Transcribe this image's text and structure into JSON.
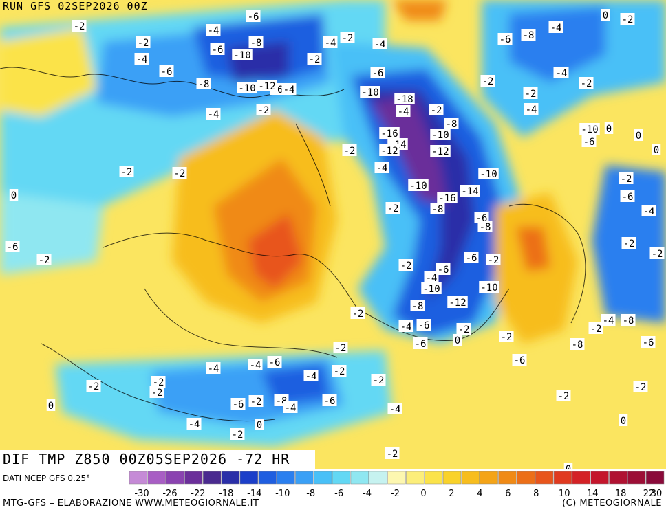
{
  "header": {
    "run_title": "RUN GFS 02SEP2026 00Z"
  },
  "map": {
    "title": "DIF TMP Z850 00Z05SEP2026 -72 HR",
    "contour_labels": [
      "-2",
      "-6",
      "-4",
      "-2",
      "-4",
      "-6",
      "-8",
      "-10",
      "-2",
      "-4",
      "-2",
      "-4",
      "-6",
      "-8",
      "-6",
      "-4",
      "-2",
      "-4",
      "-10",
      "-12",
      "-6",
      "-4",
      "-2",
      "-8",
      "-10",
      "-18",
      "-2",
      "-6",
      "-8",
      "-4",
      "-6",
      "-4",
      "-2",
      "-16",
      "-14",
      "-12",
      "-10",
      "-12",
      "-2",
      "-4",
      "-2",
      "-2",
      "-2",
      "-10",
      "-16",
      "-14",
      "-10",
      "-8",
      "-6",
      "-8",
      "-6",
      "-2",
      "-2",
      "-4",
      "-6",
      "-10",
      "-12",
      "-8",
      "-4",
      "-6",
      "-10",
      "-6",
      "-2",
      "0",
      "-2",
      "-2",
      "-4",
      "-6",
      "-4",
      "-2",
      "-2",
      "-4",
      "-2",
      "-8",
      "-4",
      "-6",
      "-6",
      "-2",
      "-4",
      "-4",
      "0",
      "-2",
      "-2",
      "-2",
      "-2",
      "0",
      "-2",
      "0",
      "-2",
      "-6",
      "-8",
      "-4",
      "-6",
      "-6",
      "-4",
      "-2",
      "-2",
      "-8",
      "-6",
      "-10",
      "0",
      "0",
      "0",
      "-2",
      "-2",
      "0",
      "-2",
      "-2",
      "-4",
      "-2",
      "0",
      "-6",
      "0",
      "-2",
      "0",
      "0",
      "-2",
      "-2",
      "0",
      "0"
    ]
  },
  "legend": {
    "source": "DATI NCEP GFS 0.25°",
    "colors": [
      "#c58ad6",
      "#a85ec4",
      "#8a43b0",
      "#6b2f9a",
      "#4a2a8f",
      "#2a2fa8",
      "#1b3fc9",
      "#1f5ee0",
      "#2a7fef",
      "#3aa0f6",
      "#49c0f7",
      "#63d8f4",
      "#8fe7f1",
      "#c6f2f0",
      "#fdf7b0",
      "#fcee7a",
      "#fbe34a",
      "#f9d22a",
      "#f7bd1e",
      "#f4a418",
      "#f08a16",
      "#ec6f18",
      "#e8551c",
      "#e03a20",
      "#d42226",
      "#c4162c",
      "#b01232",
      "#9c0e36",
      "#8a0a3a"
    ],
    "tick_labels": [
      "-30",
      "-26",
      "-22",
      "-18",
      "-14",
      "-10",
      "-8",
      "-6",
      "-4",
      "-2",
      "0",
      "2",
      "4",
      "6",
      "8",
      "10",
      "14",
      "18",
      "22",
      "30"
    ]
  },
  "footer": {
    "credit_left": "MTG-GFS – ELABORAZIONE WWW.METEOGIORNALE.IT",
    "credit_right": "(C) METEOGIORNALE"
  }
}
